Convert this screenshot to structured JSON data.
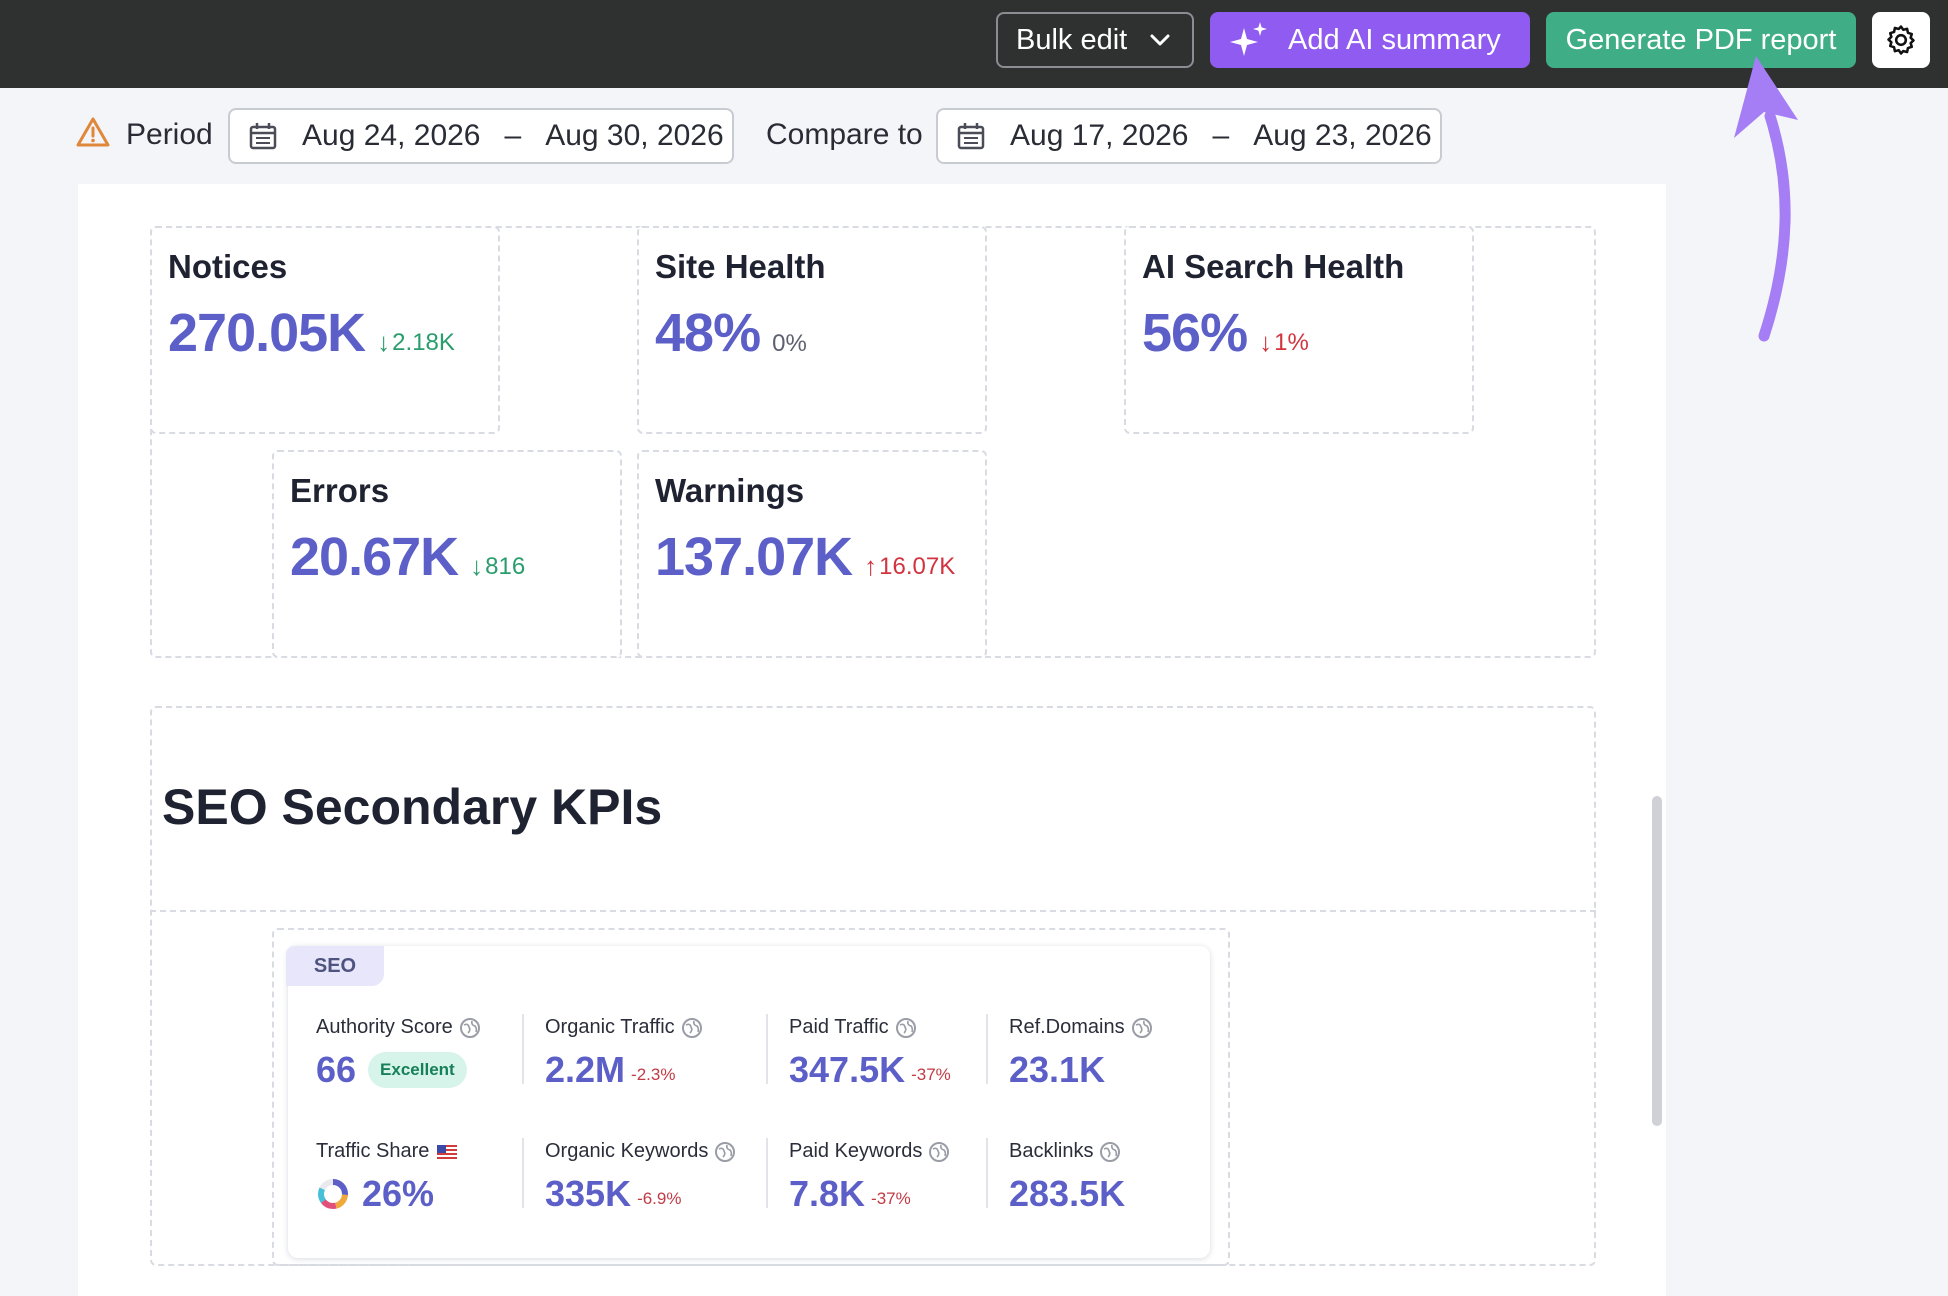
{
  "toolbar": {
    "bulk_edit_label": "Bulk edit",
    "add_ai_summary_label": "Add AI summary",
    "generate_pdf_label": "Generate PDF report"
  },
  "period": {
    "label": "Period",
    "start": "Aug 24, 2026",
    "end": "Aug 30, 2026",
    "separator": "–",
    "compare_label": "Compare to",
    "compare_start": "Aug 17, 2026",
    "compare_end": "Aug 23, 2026"
  },
  "kpis": {
    "notices": {
      "title": "Notices",
      "value": "270.05K",
      "delta": "2.18K",
      "direction": "down"
    },
    "site_health": {
      "title": "Site Health",
      "value": "48%",
      "delta": "0%"
    },
    "ai_search_health": {
      "title": "AI Search Health",
      "value": "56%",
      "delta": "1%",
      "direction": "down"
    },
    "errors": {
      "title": "Errors",
      "value": "20.67K",
      "delta": "816",
      "direction": "down"
    },
    "warnings": {
      "title": "Warnings",
      "value": "137.07K",
      "delta": "16.07K",
      "direction": "up"
    }
  },
  "seo_section": {
    "title": "SEO Secondary KPIs",
    "tag": "SEO",
    "metrics": {
      "authority_score": {
        "label": "Authority Score",
        "value": "66",
        "badge": "Excellent"
      },
      "organic_traffic": {
        "label": "Organic Traffic",
        "value": "2.2M",
        "delta": "-2.3%"
      },
      "paid_traffic": {
        "label": "Paid Traffic",
        "value": "347.5K",
        "delta": "-37%"
      },
      "ref_domains": {
        "label": "Ref.Domains",
        "value": "23.1K"
      },
      "traffic_share": {
        "label": "Traffic Share",
        "value": "26%"
      },
      "organic_keywords": {
        "label": "Organic Keywords",
        "value": "335K",
        "delta": "-6.9%"
      },
      "paid_keywords": {
        "label": "Paid Keywords",
        "value": "7.8K",
        "delta": "-37%"
      },
      "backlinks": {
        "label": "Backlinks",
        "value": "283.5K"
      }
    }
  },
  "icons": {
    "chevron": "chevron-down-icon",
    "sparkle": "sparkle-icon",
    "gear": "gear-icon",
    "warning": "warning-icon",
    "calendar": "calendar-icon",
    "globe": "globe-icon",
    "flag": "us-flag-icon",
    "arrow": "annotation-arrow-icon"
  },
  "colors": {
    "toolbar_bg": "#2f3130",
    "ai_button": "#8f5bf0",
    "pdf_button": "#3fae87",
    "kpi_value": "#5b5fc7",
    "delta_good": "#2a9d6d",
    "delta_bad": "#d1343f",
    "annotation_arrow": "#a57df4"
  }
}
